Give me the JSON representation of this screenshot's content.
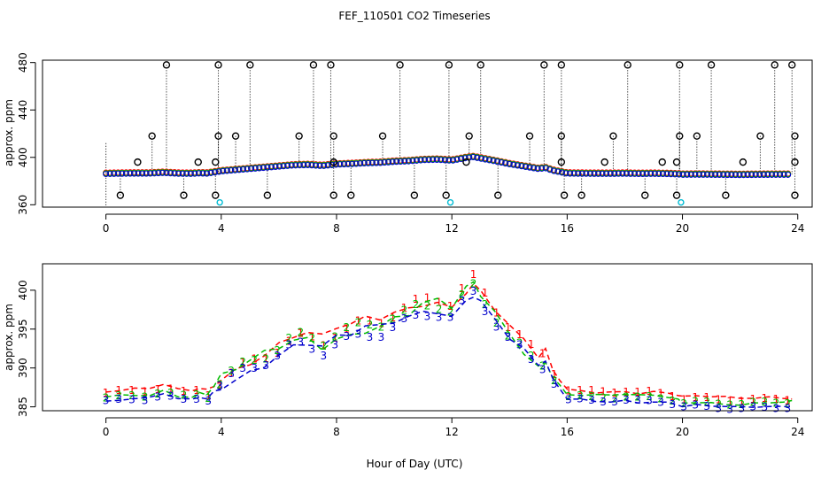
{
  "title": "FEF_110501  CO2 Timeseries",
  "xlabel": "Hour of Day (UTC)",
  "colors": {
    "s1": "#ff0000",
    "s2": "#00bb00",
    "s3": "#0000cc",
    "outlier": "#000000",
    "cyan": "#00bcd4",
    "frame": "#000000"
  },
  "chart_data": [
    {
      "type": "scatter",
      "title": "FEF_110501  CO2 Timeseries",
      "ylabel": "approx. ppm",
      "xlim": [
        -2.2,
        24.5
      ],
      "ylim": [
        358,
        482
      ],
      "xticks": [
        0,
        4,
        8,
        12,
        16,
        20,
        24
      ],
      "xtick_labels": [
        "0",
        "4",
        "8",
        "12",
        "16",
        "20",
        "24"
      ],
      "yticks": [
        360,
        400,
        440,
        480
      ],
      "ytick_labels": [
        "360",
        "400",
        "440",
        "480"
      ],
      "outliers": {
        "high_x": [
          2.1,
          3.9,
          5.0,
          7.2,
          7.8,
          10.2,
          11.9,
          13.0,
          15.2,
          15.8,
          18.1,
          19.9,
          21.0,
          23.2,
          23.8
        ],
        "high_y": 478,
        "mid_x": [
          1.6,
          3.9,
          4.5,
          6.7,
          7.9,
          9.6,
          12.6,
          14.7,
          15.8,
          17.6,
          19.9,
          20.5,
          22.7,
          23.9
        ],
        "mid_y": 418,
        "low_x": [
          0.5,
          2.7,
          3.8,
          5.6,
          7.9,
          8.5,
          10.7,
          11.8,
          13.6,
          15.9,
          16.5,
          18.7,
          19.8,
          21.5,
          23.9
        ],
        "low_y": 368,
        "small_x": [
          1.1,
          3.2,
          3.8,
          7.9,
          12.5,
          15.8,
          17.3,
          19.3,
          19.8,
          22.1,
          23.9
        ],
        "small_y": 396,
        "cyan_x": [
          3.95,
          11.95,
          19.95
        ],
        "cyan_y": 362
      }
    },
    {
      "type": "line",
      "ylabel": "approx. ppm",
      "xlim": [
        -2.2,
        24.5
      ],
      "ylim": [
        384.5,
        403.4
      ],
      "xticks": [
        0,
        4,
        8,
        12,
        16,
        20,
        24
      ],
      "xtick_labels": [
        "0",
        "4",
        "8",
        "12",
        "16",
        "20",
        "24"
      ],
      "yticks": [
        385,
        390,
        395,
        400
      ],
      "ytick_labels": [
        "385",
        "390",
        "395",
        "400"
      ],
      "series": [
        {
          "name": "1",
          "offset": 0.6
        },
        {
          "name": "2",
          "offset": 0.0
        },
        {
          "name": "3",
          "offset": -0.6
        }
      ],
      "x": [
        0,
        0.5,
        1,
        1.5,
        2,
        2.5,
        3,
        3.25,
        3.5,
        3.75,
        4,
        4.5,
        5,
        5.5,
        6,
        6.5,
        7,
        7.5,
        8,
        8.5,
        9,
        9.5,
        10,
        10.5,
        11,
        11.5,
        12,
        12.5,
        12.75,
        13,
        13.5,
        14,
        14.5,
        15,
        15.25,
        15.5,
        15.75,
        16,
        16.5,
        17,
        17.5,
        18,
        18.5,
        19,
        19.5,
        19.85,
        20,
        20.5,
        21,
        21.5,
        22,
        22.5,
        23,
        23.5,
        23.8
      ],
      "base": [
        386.3,
        386.5,
        386.6,
        386.6,
        387.2,
        386.5,
        386.4,
        386.8,
        386.6,
        387.5,
        388.5,
        389.5,
        390.5,
        391.5,
        392.5,
        393.5,
        393.8,
        393.0,
        394.2,
        394.6,
        395.3,
        395.6,
        396.5,
        397.0,
        398.0,
        398.3,
        397.5,
        399.8,
        400.5,
        399.3,
        397.0,
        394.5,
        392.5,
        390.5,
        391.2,
        389.0,
        387.8,
        386.6,
        386.5,
        386.4,
        386.4,
        386.5,
        386.3,
        386.4,
        386.2,
        385.9,
        385.6,
        385.7,
        385.6,
        385.5,
        385.4,
        385.5,
        385.6,
        385.6,
        385.6
      ],
      "label_x": [
        0,
        0.45,
        0.9,
        1.35,
        1.8,
        2.25,
        2.7,
        3.15,
        3.55,
        3.95,
        4.35,
        4.75,
        5.15,
        5.55,
        5.95,
        6.35,
        6.75,
        7.15,
        7.55,
        7.95,
        8.35,
        8.75,
        9.15,
        9.55,
        9.95,
        10.35,
        10.75,
        11.15,
        11.55,
        11.95,
        12.35,
        12.75,
        13.15,
        13.55,
        13.95,
        14.35,
        14.75,
        15.15,
        15.55,
        16.05,
        16.45,
        16.85,
        17.25,
        17.65,
        18.05,
        18.45,
        18.85,
        19.25,
        19.65,
        20.05,
        20.45,
        20.85,
        21.25,
        21.65,
        22.05,
        22.45,
        22.85,
        23.25,
        23.65
      ]
    }
  ]
}
